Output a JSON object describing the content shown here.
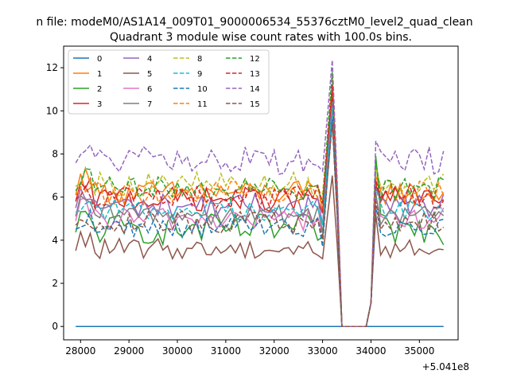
{
  "figure": {
    "suptitle": "n file: modeM0/AS1A14_009T01_9000006534_55376cztM0_level2_quad_clean",
    "title": "Quadrant 3 module wise count rates with 100.0s bins.",
    "offset_label": "+5.041e8"
  },
  "chart_data": {
    "type": "line",
    "title": "Quadrant 3 module wise count rates with 100.0s bins.",
    "xlabel": "",
    "ylabel": "",
    "x_offset": 504100000,
    "xlim": [
      27650,
      35800
    ],
    "ylim": [
      -0.62,
      13.0
    ],
    "xticks": [
      28000,
      29000,
      30000,
      31000,
      32000,
      33000,
      34000,
      35000
    ],
    "xtick_labels": [
      "28000",
      "29000",
      "30000",
      "31000",
      "32000",
      "33000",
      "34000",
      "35000"
    ],
    "yticks": [
      0,
      2,
      4,
      6,
      8,
      10,
      12
    ],
    "ytick_labels": [
      "0",
      "2",
      "4",
      "6",
      "8",
      "10",
      "12"
    ],
    "grid": false,
    "legend": {
      "placement": "top-left",
      "columns": 4
    },
    "x_start": 27900,
    "x_step": 100,
    "n_points": 77,
    "gap": {
      "start_index": 55,
      "end_index": 60,
      "rise_index": 61,
      "peak_index": 53,
      "drop_index": 54
    },
    "series": [
      {
        "name": "0",
        "color": "#1f77b4",
        "dash": "solid",
        "base": 0.0,
        "amp": 0.0,
        "peak": 0.0,
        "rebound": 0.0
      },
      {
        "name": "1",
        "color": "#ff7f0e",
        "dash": "solid",
        "base": 6.2,
        "amp": 0.35,
        "peak": 11.2,
        "rebound": 7.6
      },
      {
        "name": "2",
        "color": "#2ca02c",
        "dash": "solid",
        "base": 4.5,
        "amp": 0.45,
        "peak": 10.6,
        "rebound": 7.9
      },
      {
        "name": "3",
        "color": "#d62728",
        "dash": "solid",
        "base": 5.9,
        "amp": 0.35,
        "peak": 11.0,
        "rebound": 6.6
      },
      {
        "name": "4",
        "color": "#9467bd",
        "dash": "solid",
        "base": 5.6,
        "amp": 0.35,
        "peak": 10.4,
        "rebound": 6.4
      },
      {
        "name": "5",
        "color": "#8c564b",
        "dash": "solid",
        "base": 3.6,
        "amp": 0.3,
        "peak": 7.0,
        "rebound": 5.2
      },
      {
        "name": "6",
        "color": "#e377c2",
        "dash": "solid",
        "base": 5.0,
        "amp": 0.35,
        "peak": 9.8,
        "rebound": 6.0
      },
      {
        "name": "7",
        "color": "#7f7f7f",
        "dash": "solid",
        "base": 5.2,
        "amp": 0.3,
        "peak": 10.0,
        "rebound": 6.2
      },
      {
        "name": "8",
        "color": "#bcbd22",
        "dash": "dashed",
        "base": 6.6,
        "amp": 0.35,
        "peak": 11.4,
        "rebound": 7.4
      },
      {
        "name": "9",
        "color": "#17becf",
        "dash": "dashed",
        "base": 5.4,
        "amp": 0.3,
        "peak": 10.2,
        "rebound": 6.4
      },
      {
        "name": "10",
        "color": "#1f77b4",
        "dash": "dashed",
        "base": 4.6,
        "amp": 0.3,
        "peak": 9.6,
        "rebound": 5.6
      },
      {
        "name": "11",
        "color": "#ff7f0e",
        "dash": "dashed",
        "base": 6.2,
        "amp": 0.35,
        "peak": 11.6,
        "rebound": 7.0
      },
      {
        "name": "12",
        "color": "#2ca02c",
        "dash": "dashed",
        "base": 6.4,
        "amp": 0.35,
        "peak": 11.8,
        "rebound": 7.8
      },
      {
        "name": "13",
        "color": "#d62728",
        "dash": "dashed",
        "base": 6.0,
        "amp": 0.35,
        "peak": 11.2,
        "rebound": 6.8
      },
      {
        "name": "14",
        "color": "#9467bd",
        "dash": "dashed",
        "base": 7.7,
        "amp": 0.4,
        "peak": 12.35,
        "rebound": 8.6
      },
      {
        "name": "15",
        "color": "#8c564b",
        "dash": "dashed",
        "base": 4.8,
        "amp": 0.35,
        "peak": 9.4,
        "rebound": 5.8
      }
    ]
  }
}
